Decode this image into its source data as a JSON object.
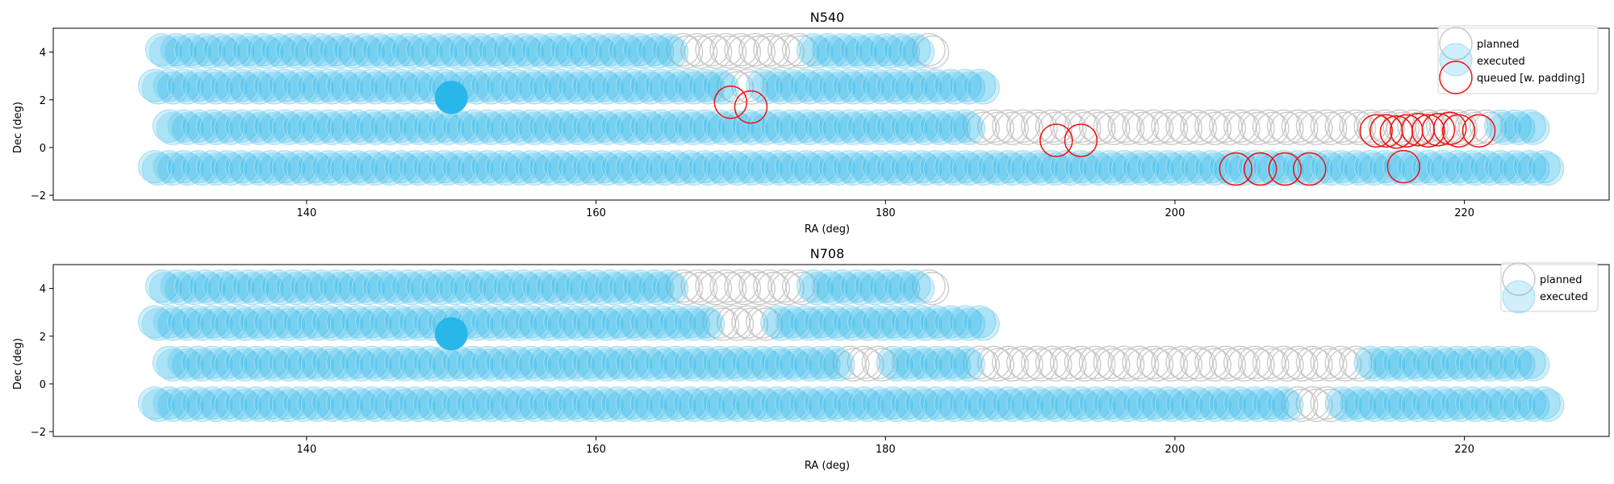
{
  "chart_data": [
    {
      "type": "scatter",
      "title": "N540",
      "xlabel": "RA (deg)",
      "ylabel": "Dec (deg)",
      "xlim": [
        122.5,
        230
      ],
      "ylim": [
        -2.2,
        5.0
      ],
      "xticks": [
        140,
        160,
        180,
        200,
        220
      ],
      "yticks": [
        -2,
        0,
        2,
        4
      ],
      "legend_position": "top-right",
      "legend": [
        {
          "label": "planned",
          "style": "planned"
        },
        {
          "label": "executed",
          "style": "executed"
        },
        {
          "label": "queued [w. padding]",
          "style": "queued"
        }
      ],
      "rows": [
        {
          "dec": 4.1,
          "ra_start": 130.0,
          "ra_end": 183.0,
          "step": 1.0,
          "executed": [
            [
              130.0,
              165.5
            ],
            [
              174.5,
              182.5
            ]
          ]
        },
        {
          "dec": 2.6,
          "ra_start": 129.5,
          "ra_end": 186.5,
          "step": 1.0,
          "executed": [
            [
              129.5,
              168.5
            ],
            [
              171.0,
              186.5
            ]
          ]
        },
        {
          "dec": 0.9,
          "ra_start": 130.5,
          "ra_end": 224.5,
          "step": 1.0,
          "executed": [
            [
              130.5,
              185.5
            ],
            [
              222.5,
              224.5
            ]
          ]
        },
        {
          "dec": -0.8,
          "ra_start": 129.5,
          "ra_end": 225.5,
          "step": 1.0,
          "executed": [
            [
              129.5,
              225.5
            ]
          ]
        }
      ],
      "dithers": [
        0.0,
        0.25
      ],
      "highlight": {
        "ra": 150.0,
        "dec": 2.1
      },
      "queued": [
        {
          "ra": 169.3,
          "dec": 1.9
        },
        {
          "ra": 170.7,
          "dec": 1.7
        },
        {
          "ra": 191.8,
          "dec": 0.3
        },
        {
          "ra": 193.5,
          "dec": 0.3
        },
        {
          "ra": 204.2,
          "dec": -0.9
        },
        {
          "ra": 205.9,
          "dec": -0.9
        },
        {
          "ra": 207.6,
          "dec": -0.9
        },
        {
          "ra": 209.3,
          "dec": -0.9
        },
        {
          "ra": 215.8,
          "dec": -0.8
        },
        {
          "ra": 213.9,
          "dec": 0.7
        },
        {
          "ra": 214.6,
          "dec": 0.7
        },
        {
          "ra": 215.3,
          "dec": 0.65
        },
        {
          "ra": 216.0,
          "dec": 0.7
        },
        {
          "ra": 216.8,
          "dec": 0.75
        },
        {
          "ra": 217.5,
          "dec": 0.7
        },
        {
          "ra": 218.2,
          "dec": 0.75
        },
        {
          "ra": 219.0,
          "dec": 0.8
        },
        {
          "ra": 219.6,
          "dec": 0.7
        },
        {
          "ra": 221.0,
          "dec": 0.7
        }
      ]
    },
    {
      "type": "scatter",
      "title": "N708",
      "xlabel": "RA (deg)",
      "ylabel": "Dec (deg)",
      "xlim": [
        122.5,
        230
      ],
      "ylim": [
        -2.2,
        5.0
      ],
      "xticks": [
        140,
        160,
        180,
        200,
        220
      ],
      "yticks": [
        -2,
        0,
        2,
        4
      ],
      "legend_position": "top-right",
      "legend": [
        {
          "label": "planned",
          "style": "planned"
        },
        {
          "label": "executed",
          "style": "executed"
        }
      ],
      "rows": [
        {
          "dec": 4.1,
          "ra_start": 130.0,
          "ra_end": 183.0,
          "step": 1.0,
          "executed": [
            [
              130.0,
              165.5
            ],
            [
              174.5,
              182.5
            ]
          ]
        },
        {
          "dec": 2.6,
          "ra_start": 129.5,
          "ra_end": 186.5,
          "step": 1.0,
          "executed": [
            [
              129.5,
              168.0
            ],
            [
              172.5,
              186.5
            ]
          ]
        },
        {
          "dec": 0.9,
          "ra_start": 130.5,
          "ra_end": 224.5,
          "step": 1.0,
          "executed": [
            [
              130.5,
              177.0
            ],
            [
              180.5,
              185.5
            ],
            [
              213.5,
              224.5
            ]
          ]
        },
        {
          "dec": -0.8,
          "ra_start": 129.5,
          "ra_end": 225.5,
          "step": 1.0,
          "executed": [
            [
              129.5,
              208.0
            ],
            [
              211.0,
              225.5
            ]
          ]
        }
      ],
      "dithers": [
        0.0,
        0.25
      ],
      "highlight": {
        "ra": 150.0,
        "dec": 2.1
      },
      "queued": []
    }
  ],
  "colors": {
    "executed_fill": "#29b6e8",
    "executed_edge": "#9fdcf2",
    "planned_edge": "#c8c8c8",
    "queued_edge": "#ee1111",
    "axis": "#000000"
  }
}
